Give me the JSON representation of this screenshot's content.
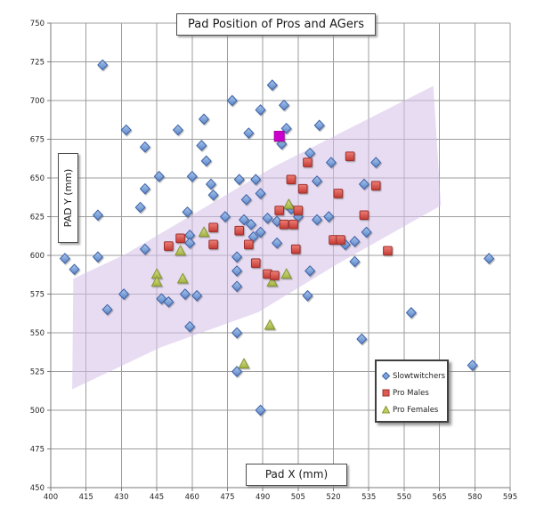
{
  "chart_data": {
    "type": "scatter",
    "title": "Pad Position of Pros and AGers",
    "xlabel": "Pad X (mm)",
    "ylabel": "PAD Y (mm)",
    "x_axis": {
      "min": 400,
      "max": 595,
      "step": 15
    },
    "y_axis": {
      "min": 450,
      "max": 750,
      "step": 25
    },
    "grid": true,
    "legend_position": "lower-right",
    "band": {
      "description": "lavender shaded diagonal band",
      "color": "#d5bfe8",
      "opacity": 0.55,
      "polygon": [
        [
          409.6,
          585
        ],
        [
          431.4,
          600.5
        ],
        [
          494.4,
          657
        ],
        [
          562.4,
          709.5
        ],
        [
          565.6,
          632.2
        ],
        [
          522.1,
          594.8
        ],
        [
          488.1,
          563.3
        ],
        [
          446.5,
          540.5
        ],
        [
          409.1,
          513.5
        ]
      ]
    },
    "series": [
      {
        "name": "Slowtwitchers",
        "marker": "diamond",
        "fill": "#7ea6dd",
        "stroke": "#3c62a8",
        "points": [
          [
            422,
            723
          ],
          [
            432,
            681
          ],
          [
            454,
            681
          ],
          [
            465,
            688
          ],
          [
            477,
            700
          ],
          [
            489,
            694
          ],
          [
            499,
            697
          ],
          [
            494,
            710
          ],
          [
            484,
            679
          ],
          [
            500,
            682
          ],
          [
            514,
            684
          ],
          [
            440,
            670
          ],
          [
            464,
            671
          ],
          [
            466,
            661
          ],
          [
            498,
            672
          ],
          [
            510,
            666
          ],
          [
            446,
            651
          ],
          [
            460,
            651
          ],
          [
            468,
            646
          ],
          [
            440,
            643
          ],
          [
            469,
            639
          ],
          [
            513,
            648
          ],
          [
            480,
            649
          ],
          [
            487,
            649
          ],
          [
            533,
            646
          ],
          [
            538,
            660
          ],
          [
            519,
            660
          ],
          [
            489,
            640
          ],
          [
            483,
            636
          ],
          [
            438,
            631
          ],
          [
            420,
            626
          ],
          [
            458,
            628
          ],
          [
            474,
            625
          ],
          [
            482,
            623
          ],
          [
            485,
            620
          ],
          [
            492,
            624
          ],
          [
            496,
            622
          ],
          [
            505,
            625
          ],
          [
            513,
            623
          ],
          [
            518,
            625
          ],
          [
            502,
            630
          ],
          [
            534,
            615
          ],
          [
            525,
            607
          ],
          [
            529,
            609
          ],
          [
            489,
            615
          ],
          [
            486,
            612
          ],
          [
            496,
            608
          ],
          [
            440,
            604
          ],
          [
            459,
            613
          ],
          [
            459,
            608
          ],
          [
            406,
            598
          ],
          [
            410,
            591
          ],
          [
            420,
            599
          ],
          [
            479,
            599
          ],
          [
            479,
            590
          ],
          [
            479,
            580
          ],
          [
            510,
            590
          ],
          [
            509,
            574
          ],
          [
            529,
            596
          ],
          [
            586,
            598
          ],
          [
            424,
            565
          ],
          [
            431,
            575
          ],
          [
            447,
            572
          ],
          [
            450,
            570
          ],
          [
            457,
            575
          ],
          [
            462,
            574
          ],
          [
            459,
            554
          ],
          [
            479,
            550
          ],
          [
            479,
            525
          ],
          [
            489,
            500
          ],
          [
            532,
            546
          ],
          [
            553,
            563
          ],
          [
            579,
            529
          ]
        ]
      },
      {
        "name": "Pro Males",
        "marker": "square",
        "fill": "#dd5a52",
        "stroke": "#9e2f2b",
        "points": [
          [
            509,
            660
          ],
          [
            527,
            664
          ],
          [
            538,
            645
          ],
          [
            507,
            643
          ],
          [
            502,
            649
          ],
          [
            522,
            640
          ],
          [
            533,
            626
          ],
          [
            497,
            629
          ],
          [
            505,
            629
          ],
          [
            499,
            620
          ],
          [
            503,
            620
          ],
          [
            480,
            616
          ],
          [
            469,
            618
          ],
          [
            484,
            607
          ],
          [
            504,
            604
          ],
          [
            487,
            595
          ],
          [
            492,
            588
          ],
          [
            495,
            587
          ],
          [
            455,
            611
          ],
          [
            450,
            606
          ],
          [
            469,
            607
          ],
          [
            520,
            610
          ],
          [
            523,
            610
          ],
          [
            543,
            603
          ]
        ]
      },
      {
        "name": "Pro Females",
        "marker": "triangle",
        "fill": "#c0cc62",
        "stroke": "#879631",
        "points": [
          [
            465,
            615
          ],
          [
            455,
            603
          ],
          [
            445,
            588
          ],
          [
            445,
            583
          ],
          [
            456,
            585
          ],
          [
            500,
            588
          ],
          [
            494,
            583
          ],
          [
            501,
            633
          ],
          [
            493,
            555
          ],
          [
            482,
            530
          ]
        ]
      }
    ],
    "highlight_point": {
      "marker": "square",
      "color": "#cc00cc",
      "point": [
        497,
        677
      ]
    }
  }
}
